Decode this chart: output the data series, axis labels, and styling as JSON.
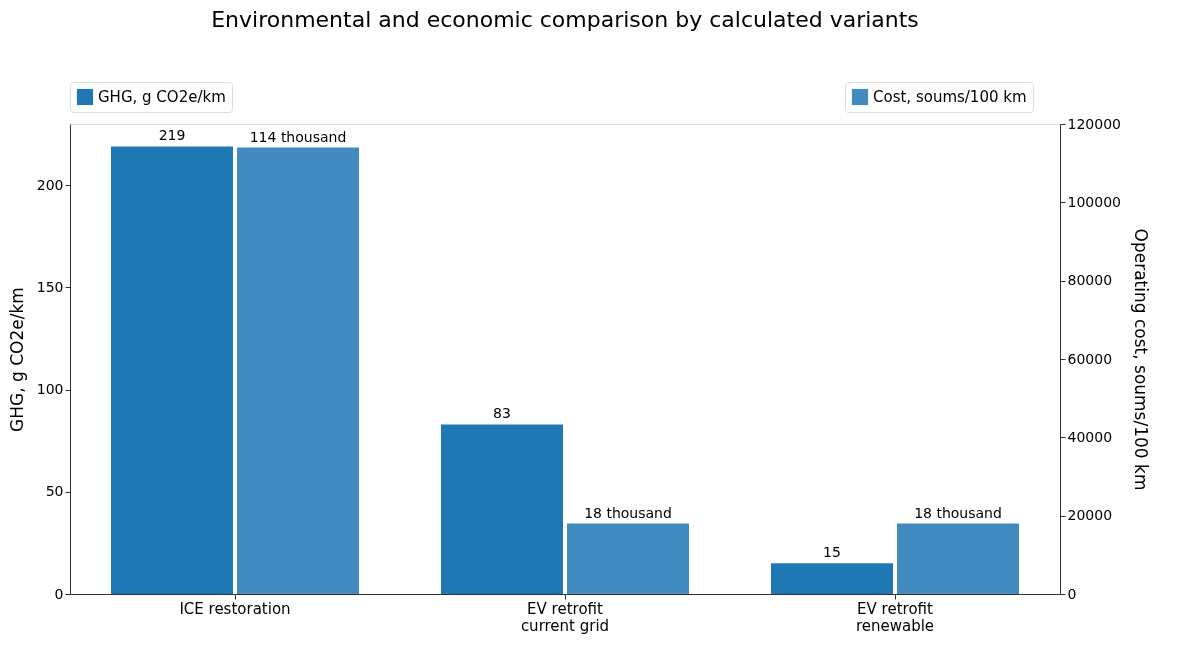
{
  "chart_data": {
    "type": "bar",
    "title": "Environmental and economic comparison by calculated variants",
    "categories": [
      "ICE restoration",
      "EV retrofit\ncurrent grid",
      "EV retrofit\nrenewable"
    ],
    "ylabel": "GHG, g CO2e/km",
    "y2label": "Operating cost, soums/100 km",
    "ylim": [
      0,
      230
    ],
    "yticks": [
      0,
      50,
      100,
      150,
      200
    ],
    "y2lim": [
      0,
      120000
    ],
    "y2ticks": [
      0,
      20000,
      40000,
      60000,
      80000,
      100000,
      120000
    ],
    "grid": false,
    "legend": "top",
    "series": [
      {
        "name": "GHG, g CO2e/km",
        "color": "#1f77b4",
        "values": [
          219,
          83,
          15
        ],
        "value_labels": [
          "219",
          "83",
          "15"
        ]
      },
      {
        "name": "Cost, soums/100 km",
        "color": "#428bc0",
        "values": [
          114000,
          18000,
          18000
        ],
        "axis": "y2",
        "value_labels": [
          "114 thousand",
          "18 thousand",
          "18 thousand"
        ]
      }
    ]
  }
}
